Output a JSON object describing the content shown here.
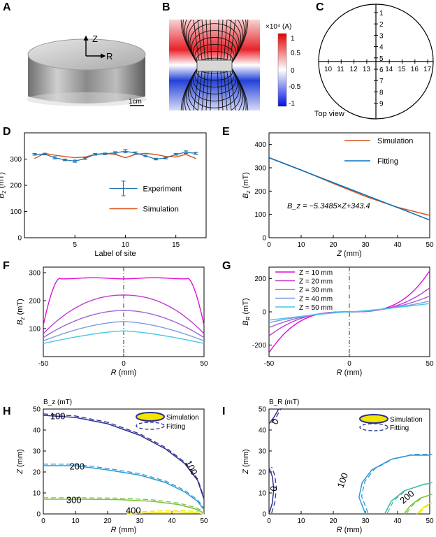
{
  "panels": {
    "A": {
      "label": "A",
      "axis_z": "Z",
      "axis_r": "R",
      "scale_bar": "1cm"
    },
    "B": {
      "label": "B",
      "colorbar_title": "×10⁴ (A)",
      "colorbar_ticks": [
        "1",
        "0.5",
        "0",
        "-0.5",
        "-1"
      ]
    },
    "C": {
      "label": "C",
      "caption": "Top view",
      "vertical_sites": [
        "1",
        "2",
        "3",
        "4",
        "5",
        "6",
        "7",
        "8",
        "9"
      ],
      "horizontal_sites": [
        "10",
        "11",
        "12",
        "13",
        "14",
        "15",
        "16",
        "17"
      ]
    },
    "D": {
      "label": "D"
    },
    "E": {
      "label": "E"
    },
    "F": {
      "label": "F"
    },
    "G": {
      "label": "G"
    },
    "H": {
      "label": "H"
    },
    "I": {
      "label": "I"
    }
  },
  "colors": {
    "experiment": "#1f77b4",
    "simulation": "#d95319",
    "fitting": "#0072bd",
    "z10": "#e00ed6",
    "z20": "#c23ad0",
    "z30": "#9a67d6",
    "z40": "#7b9de0",
    "z50": "#47c7e8",
    "c100": "#2d2f8f",
    "c200": "#2b9ad6",
    "c300": "#7ac43b",
    "c400": "#f2e600",
    "field_red": "#e8232b",
    "field_blue": "#2241d8"
  },
  "chart_data": [
    {
      "id": "D",
      "type": "line",
      "xlabel": "Label of site",
      "ylabel": "B_z (mT)",
      "xlim": [
        0,
        18
      ],
      "ylim": [
        0,
        400
      ],
      "xticks": [
        5,
        10,
        15
      ],
      "yticks": [
        0,
        100,
        200,
        300
      ],
      "legend": [
        "Experiment",
        "Simulation"
      ],
      "series": [
        {
          "name": "Experiment",
          "x": [
            1,
            2,
            3,
            4,
            5,
            6,
            7,
            8,
            9,
            10,
            11,
            12,
            13,
            14,
            15,
            16,
            17
          ],
          "values": [
            318,
            319,
            305,
            297,
            292,
            302,
            318,
            320,
            324,
            330,
            323,
            312,
            300,
            304,
            318,
            326,
            322
          ],
          "errors": [
            3,
            3,
            4,
            3,
            4,
            3,
            3,
            3,
            4,
            6,
            4,
            3,
            3,
            3,
            3,
            5,
            4
          ]
        },
        {
          "name": "Simulation",
          "x": [
            1,
            2,
            3,
            4,
            5,
            6,
            7,
            8,
            9,
            10,
            11,
            12,
            13,
            14,
            15,
            16,
            17
          ],
          "values": [
            302,
            322,
            315,
            310,
            305,
            308,
            318,
            322,
            318,
            305,
            318,
            322,
            318,
            310,
            308,
            318,
            302
          ]
        }
      ],
      "legend_error_demo": {
        "x": 9.8,
        "y": 188,
        "err": 28
      }
    },
    {
      "id": "E",
      "type": "line",
      "xlabel": "Z (mm)",
      "ylabel": "B_z (mT)",
      "xlim": [
        0,
        50
      ],
      "ylim": [
        0,
        450
      ],
      "xticks": [
        0,
        10,
        20,
        30,
        40,
        50
      ],
      "yticks": [
        0,
        100,
        200,
        300,
        400
      ],
      "legend": [
        "Simulation",
        "Fitting"
      ],
      "annotation": "B_z = −5.3485×Z+343.4",
      "series": [
        {
          "name": "Simulation",
          "x": [
            0,
            10,
            20,
            30,
            40,
            50
          ],
          "values": [
            343.4,
            290.6,
            233,
            177.5,
            130.5,
            96
          ]
        },
        {
          "name": "Fitting",
          "x": [
            0,
            50
          ],
          "values": [
            343.4,
            76
          ]
        }
      ]
    },
    {
      "id": "F",
      "type": "line",
      "xlabel": "R (mm)",
      "ylabel": "B_z (mT)",
      "xlim": [
        -50,
        50
      ],
      "ylim": [
        0,
        320
      ],
      "xticks": [
        -50,
        0,
        50
      ],
      "xtick_labels": [
        "-50",
        "0",
        "50"
      ],
      "yticks": [
        100,
        200,
        300
      ],
      "series": [
        {
          "name": "Z = 10 mm",
          "peak": 280,
          "edge": 112
        },
        {
          "name": "Z = 20 mm",
          "peak": 220,
          "edge": 82
        },
        {
          "name": "Z = 30 mm",
          "peak": 165,
          "edge": 68
        },
        {
          "name": "Z = 40 mm",
          "peak": 125,
          "edge": 56
        },
        {
          "name": "Z = 50 mm",
          "peak": 92,
          "edge": 47
        }
      ]
    },
    {
      "id": "G",
      "type": "line",
      "xlabel": "R (mm)",
      "ylabel": "B_R (mT)",
      "xlim": [
        -50,
        50
      ],
      "ylim": [
        -270,
        270
      ],
      "xticks": [
        -50,
        0,
        50
      ],
      "xtick_labels": [
        "-50",
        "0",
        "50"
      ],
      "yticks": [
        -200,
        0,
        200
      ],
      "legend": [
        "Z = 10 mm",
        "Z = 20 mm",
        "Z = 30 mm",
        "Z = 40 mm",
        "Z = 50 mm"
      ],
      "series": [
        {
          "name": "Z = 10 mm",
          "edge": 248
        },
        {
          "name": "Z = 20 mm",
          "edge": 145
        },
        {
          "name": "Z = 30 mm",
          "edge": 95
        },
        {
          "name": "Z = 40 mm",
          "edge": 65
        },
        {
          "name": "Z = 50 mm",
          "edge": 50
        }
      ]
    },
    {
      "id": "H",
      "type": "contour",
      "title": "B_z (mT)",
      "xlabel": "R (mm)",
      "ylabel": "Z (mm)",
      "xlim": [
        0,
        50
      ],
      "ylim": [
        0,
        50
      ],
      "xticks": [
        0,
        10,
        20,
        30,
        40,
        50
      ],
      "yticks": [
        0,
        10,
        20,
        30,
        40,
        50
      ],
      "legend": [
        "Simulation",
        "Fitting"
      ],
      "contour_labels": [
        {
          "text": "100",
          "x": 4.5,
          "y": 46.5
        },
        {
          "text": "100",
          "x": 46,
          "y": 22,
          "rotate": 62
        },
        {
          "text": "200",
          "x": 10.5,
          "y": 22.5
        },
        {
          "text": "300",
          "x": 9.5,
          "y": 6.5
        },
        {
          "text": "400",
          "x": 28,
          "y": 1.5
        }
      ]
    },
    {
      "id": "I",
      "type": "contour",
      "title": "B_R (mT)",
      "xlabel": "R (mm)",
      "ylabel": "Z (mm)",
      "xlim": [
        0,
        50
      ],
      "ylim": [
        0,
        50
      ],
      "xticks": [
        0,
        10,
        20,
        30,
        40,
        50
      ],
      "yticks": [
        0,
        10,
        20,
        30,
        40,
        50
      ],
      "legend": [
        "Simulation",
        "Fitting"
      ],
      "contour_labels": [
        {
          "text": "0",
          "x": 2,
          "y": 44,
          "rotate": -60
        },
        {
          "text": "0",
          "x": 1.5,
          "y": 12,
          "rotate": -80
        },
        {
          "text": "100",
          "x": 23,
          "y": 16,
          "rotate": -70
        },
        {
          "text": "200",
          "x": 43,
          "y": 8,
          "rotate": -40
        }
      ]
    }
  ]
}
